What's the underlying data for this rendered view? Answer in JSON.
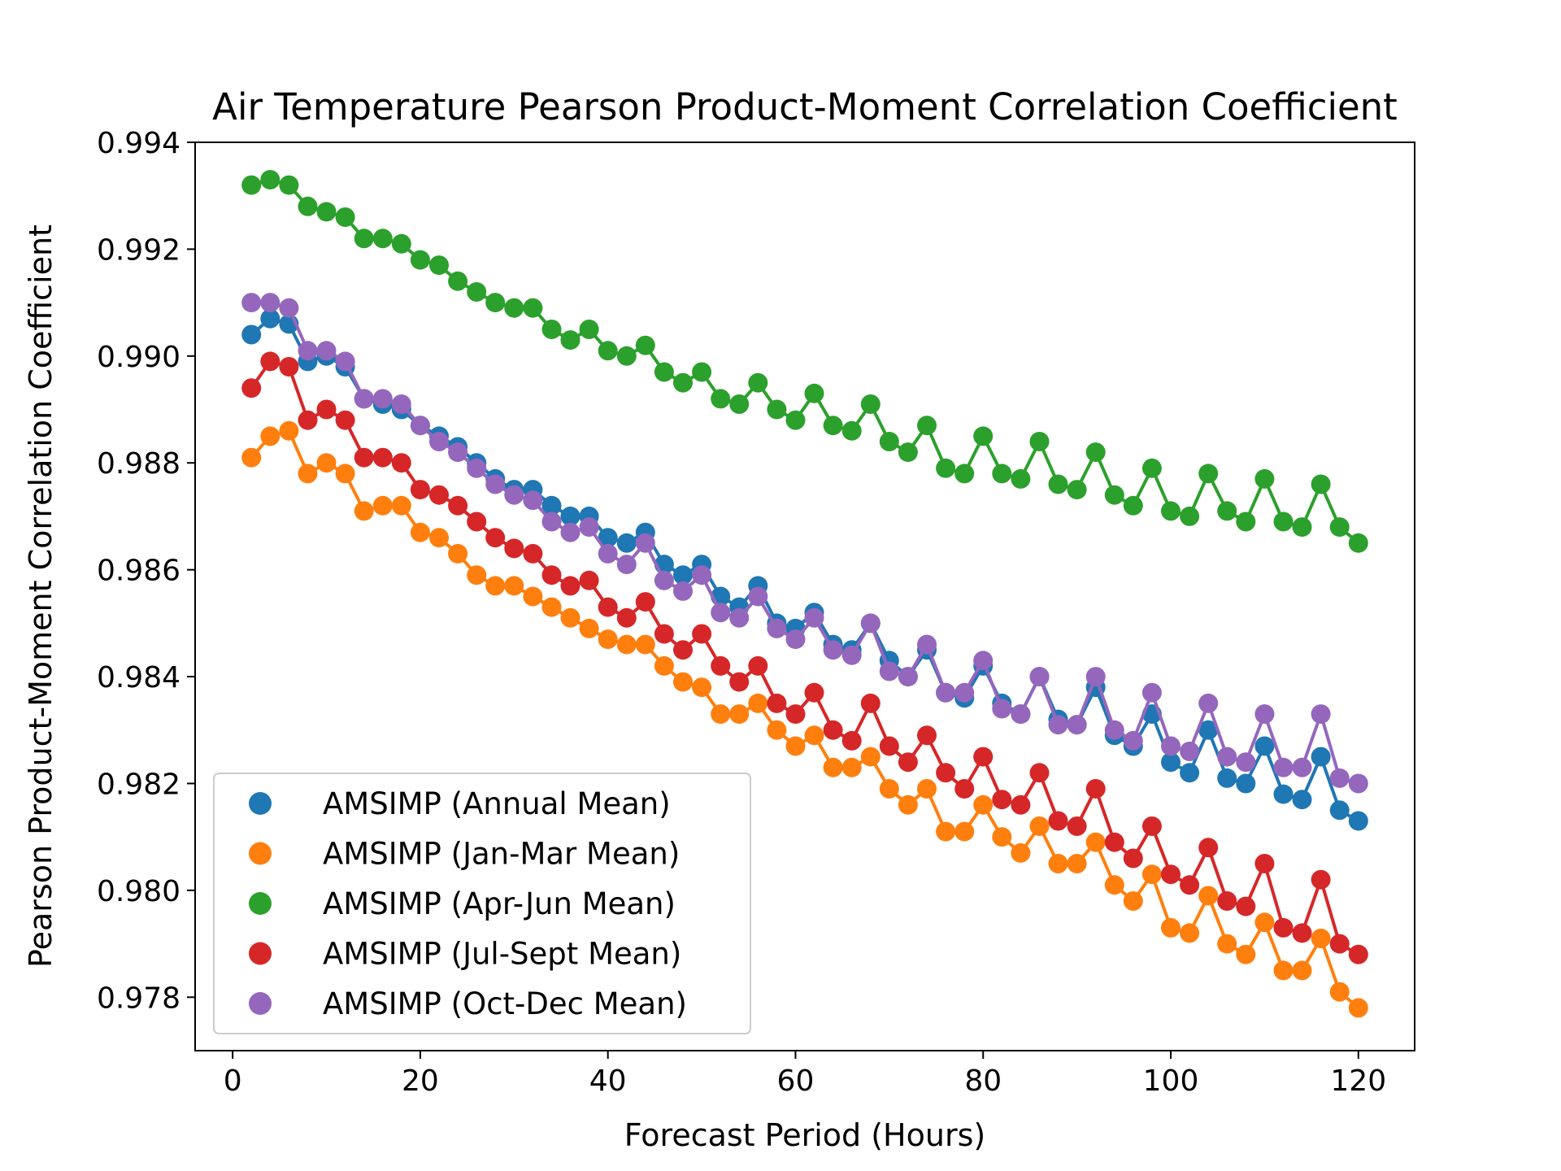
{
  "chart_data": {
    "type": "line",
    "title": "Air Temperature Pearson Product-Moment Correlation Coefficient",
    "xlabel": "Forecast Period (Hours)",
    "ylabel": "Pearson Product-Moment Correlation Coefficient",
    "xlim": [
      -4,
      126
    ],
    "ylim": [
      0.977,
      0.994
    ],
    "xticks": [
      0,
      20,
      40,
      60,
      80,
      100,
      120
    ],
    "xtick_labels": [
      "0",
      "20",
      "40",
      "60",
      "80",
      "100",
      "120"
    ],
    "yticks": [
      0.978,
      0.98,
      0.982,
      0.984,
      0.986,
      0.988,
      0.99,
      0.992,
      0.994
    ],
    "ytick_labels": [
      "0.978",
      "0.980",
      "0.982",
      "0.984",
      "0.986",
      "0.988",
      "0.990",
      "0.992",
      "0.994"
    ],
    "grid": false,
    "legend_position": "lower-left",
    "x": [
      2,
      4,
      6,
      8,
      10,
      12,
      14,
      16,
      18,
      20,
      22,
      24,
      26,
      28,
      30,
      32,
      34,
      36,
      38,
      40,
      42,
      44,
      46,
      48,
      50,
      52,
      54,
      56,
      58,
      60,
      62,
      64,
      66,
      68,
      70,
      72,
      74,
      76,
      78,
      80,
      82,
      84,
      86,
      88,
      90,
      92,
      94,
      96,
      98,
      100,
      102,
      104,
      106,
      108,
      110,
      112,
      114,
      116,
      118,
      120
    ],
    "series": [
      {
        "name": "AMSIMP (Annual Mean)",
        "color": "#1f77b4",
        "values": [
          0.9904,
          0.9907,
          0.9906,
          0.9899,
          0.99,
          0.9898,
          0.9892,
          0.9891,
          0.989,
          0.9887,
          0.9885,
          0.9883,
          0.988,
          0.9877,
          0.9875,
          0.9875,
          0.9872,
          0.987,
          0.987,
          0.9866,
          0.9865,
          0.9867,
          0.9861,
          0.9859,
          0.9861,
          0.9855,
          0.9853,
          0.9857,
          0.985,
          0.9849,
          0.9852,
          0.9846,
          0.9845,
          0.985,
          0.9843,
          0.984,
          0.9845,
          0.9837,
          0.9836,
          0.9842,
          0.9835,
          0.9833,
          0.984,
          0.9832,
          0.9831,
          0.9838,
          0.9829,
          0.9827,
          0.9833,
          0.9824,
          0.9822,
          0.983,
          0.9821,
          0.982,
          0.9827,
          0.9818,
          0.9817,
          0.9825,
          0.9815,
          0.9813
        ]
      },
      {
        "name": "AMSIMP (Jan-Mar Mean)",
        "color": "#ff7f0e",
        "values": [
          0.9881,
          0.9885,
          0.9886,
          0.9878,
          0.988,
          0.9878,
          0.9871,
          0.9872,
          0.9872,
          0.9867,
          0.9866,
          0.9863,
          0.9859,
          0.9857,
          0.9857,
          0.9855,
          0.9853,
          0.9851,
          0.9849,
          0.9847,
          0.9846,
          0.9846,
          0.9842,
          0.9839,
          0.9838,
          0.9833,
          0.9833,
          0.9835,
          0.983,
          0.9827,
          0.9829,
          0.9823,
          0.9823,
          0.9825,
          0.9819,
          0.9816,
          0.9819,
          0.9811,
          0.9811,
          0.9816,
          0.981,
          0.9807,
          0.9812,
          0.9805,
          0.9805,
          0.9809,
          0.9801,
          0.9798,
          0.9803,
          0.9793,
          0.9792,
          0.9799,
          0.979,
          0.9788,
          0.9794,
          0.9785,
          0.9785,
          0.9791,
          0.9781,
          0.9778
        ]
      },
      {
        "name": "AMSIMP (Apr-Jun Mean)",
        "color": "#2ca02c",
        "values": [
          0.9932,
          0.9933,
          0.9932,
          0.9928,
          0.9927,
          0.9926,
          0.9922,
          0.9922,
          0.9921,
          0.9918,
          0.9917,
          0.9914,
          0.9912,
          0.991,
          0.9909,
          0.9909,
          0.9905,
          0.9903,
          0.9905,
          0.9901,
          0.99,
          0.9902,
          0.9897,
          0.9895,
          0.9897,
          0.9892,
          0.9891,
          0.9895,
          0.989,
          0.9888,
          0.9893,
          0.9887,
          0.9886,
          0.9891,
          0.9884,
          0.9882,
          0.9887,
          0.9879,
          0.9878,
          0.9885,
          0.9878,
          0.9877,
          0.9884,
          0.9876,
          0.9875,
          0.9882,
          0.9874,
          0.9872,
          0.9879,
          0.9871,
          0.987,
          0.9878,
          0.9871,
          0.9869,
          0.9877,
          0.9869,
          0.9868,
          0.9876,
          0.9868,
          0.9865
        ]
      },
      {
        "name": "AMSIMP (Jul-Sept Mean)",
        "color": "#d62728",
        "values": [
          0.9894,
          0.9899,
          0.9898,
          0.9888,
          0.989,
          0.9888,
          0.9881,
          0.9881,
          0.988,
          0.9875,
          0.9874,
          0.9872,
          0.9869,
          0.9866,
          0.9864,
          0.9863,
          0.9859,
          0.9857,
          0.9858,
          0.9853,
          0.9851,
          0.9854,
          0.9848,
          0.9845,
          0.9848,
          0.9842,
          0.9839,
          0.9842,
          0.9835,
          0.9833,
          0.9837,
          0.983,
          0.9828,
          0.9835,
          0.9827,
          0.9824,
          0.9829,
          0.9822,
          0.9819,
          0.9825,
          0.9817,
          0.9816,
          0.9822,
          0.9813,
          0.9812,
          0.9819,
          0.9809,
          0.9806,
          0.9812,
          0.9803,
          0.9801,
          0.9808,
          0.9798,
          0.9797,
          0.9805,
          0.9793,
          0.9792,
          0.9802,
          0.979,
          0.9788
        ]
      },
      {
        "name": "AMSIMP (Oct-Dec Mean)",
        "color": "#9467bd",
        "values": [
          0.991,
          0.991,
          0.9909,
          0.9901,
          0.9901,
          0.9899,
          0.9892,
          0.9892,
          0.9891,
          0.9887,
          0.9884,
          0.9882,
          0.9879,
          0.9876,
          0.9874,
          0.9873,
          0.9869,
          0.9867,
          0.9868,
          0.9863,
          0.9861,
          0.9865,
          0.9858,
          0.9856,
          0.9859,
          0.9852,
          0.9851,
          0.9855,
          0.9849,
          0.9847,
          0.9851,
          0.9845,
          0.9844,
          0.985,
          0.9841,
          0.984,
          0.9846,
          0.9837,
          0.9837,
          0.9843,
          0.9834,
          0.9833,
          0.984,
          0.9831,
          0.9831,
          0.984,
          0.983,
          0.9828,
          0.9837,
          0.9827,
          0.9826,
          0.9835,
          0.9825,
          0.9824,
          0.9833,
          0.9823,
          0.9823,
          0.9833,
          0.9821,
          0.982
        ]
      }
    ]
  }
}
